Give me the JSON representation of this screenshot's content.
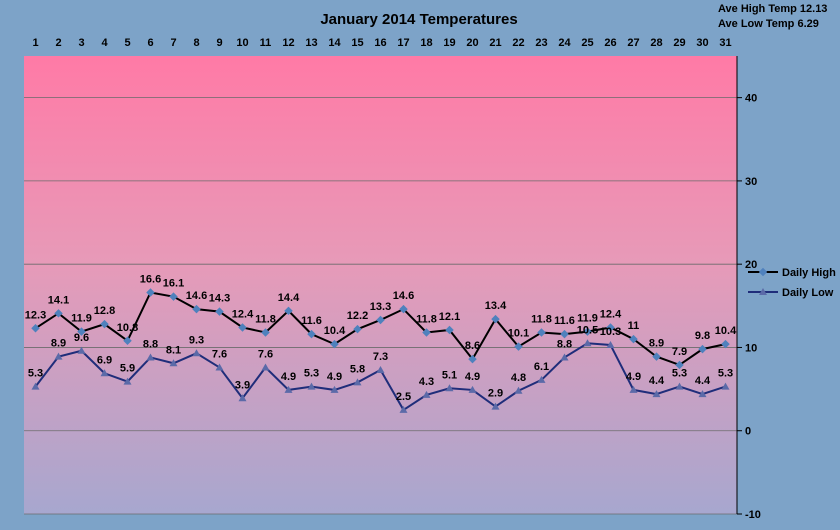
{
  "chart_data": {
    "type": "line",
    "title": "January 2014 Temperatures",
    "stats": [
      "Ave High Temp 12.13",
      "Ave Low Temp 6.29"
    ],
    "x": [
      1,
      2,
      3,
      4,
      5,
      6,
      7,
      8,
      9,
      10,
      11,
      12,
      13,
      14,
      15,
      16,
      17,
      18,
      19,
      20,
      21,
      22,
      23,
      24,
      25,
      26,
      27,
      28,
      29,
      30,
      31
    ],
    "x_tick_labels": [
      "1",
      "2",
      "3",
      "4",
      "5",
      "6",
      "7",
      "8",
      "9",
      "10",
      "11",
      "12",
      "13",
      "14",
      "15",
      "16",
      "17",
      "18",
      "19",
      "20",
      "21",
      "22",
      "23",
      "24",
      "25",
      "26",
      "27",
      "28",
      "29",
      "30",
      "31"
    ],
    "ylim": [
      -10,
      45
    ],
    "yticks": [
      -10,
      0,
      10,
      20,
      30,
      40
    ],
    "y_tick_labels": [
      "-10",
      "0",
      "10",
      "20",
      "30",
      "40"
    ],
    "grid": true,
    "legend_position": "right",
    "series": [
      {
        "name": "Daily High",
        "color": "#000000",
        "marker_color": "#4f81bd",
        "values": [
          12.3,
          14.1,
          11.9,
          12.8,
          10.8,
          16.6,
          16.1,
          14.6,
          14.3,
          12.4,
          11.8,
          14.4,
          11.6,
          10.4,
          12.2,
          13.3,
          14.6,
          11.8,
          12.1,
          8.6,
          13.4,
          10.1,
          11.8,
          11.6,
          11.9,
          12.4,
          11,
          8.9,
          7.9,
          9.8,
          10.4
        ],
        "labels": [
          "12.3",
          "14.1",
          "11.9",
          "12.8",
          "10.8",
          "16.6",
          "16.1",
          "14.6",
          "14.3",
          "12.4",
          "11.8",
          "14.4",
          "11.6",
          "10.4",
          "12.2",
          "13.3",
          "14.6",
          "11.8",
          "12.1",
          "8.6",
          "13.4",
          "10.1",
          "11.8",
          "11.6",
          "11.9",
          "12.4",
          "11",
          "8.9",
          "7.9",
          "9.8",
          "10.4"
        ]
      },
      {
        "name": "Daily Low",
        "color": "#1f2d7a",
        "marker_color": "#5b6aa8",
        "values": [
          5.3,
          8.9,
          9.6,
          6.9,
          5.9,
          8.8,
          8.1,
          9.3,
          7.6,
          3.9,
          7.6,
          4.9,
          5.3,
          4.9,
          5.8,
          7.3,
          2.5,
          4.3,
          5.1,
          4.9,
          2.9,
          4.8,
          6.1,
          8.8,
          10.5,
          10.3,
          4.9,
          4.4,
          5.3,
          4.4,
          5.3
        ],
        "labels": [
          "5.3",
          "8.9",
          "9.6",
          "6.9",
          "5.9",
          "8.8",
          "8.1",
          "9.3",
          "7.6",
          "3.9",
          "7.6",
          "4.9",
          "5.3",
          "4.9",
          "5.8",
          "7.3",
          "2.5",
          "4.3",
          "5.1",
          "4.9",
          "2.9",
          "4.8",
          "6.1",
          "8.8",
          "10.5",
          "10.3",
          "4.9",
          "4.4",
          "5.3",
          "4.4",
          "5.3"
        ]
      }
    ]
  }
}
